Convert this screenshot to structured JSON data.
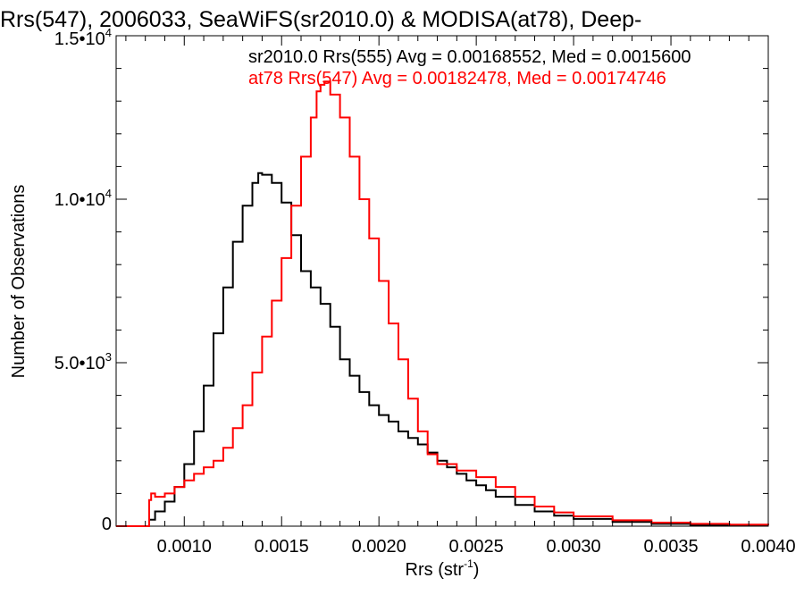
{
  "chart_data": {
    "type": "line",
    "title": "Rrs(547), 2006033, SeaWiFS(sr2010.0) & MODISA(at78), Deep-",
    "xlabel": "Rrs (str",
    "xlabel_sup": "-1",
    "xlabel_suffix": ")",
    "ylabel": "Number of Observations",
    "xlim": [
      0.00065,
      0.004
    ],
    "ylim": [
      0,
      15000
    ],
    "x_ticks": [
      {
        "value": 0.001,
        "label": "0.0010"
      },
      {
        "value": 0.0015,
        "label": "0.0015"
      },
      {
        "value": 0.002,
        "label": "0.0020"
      },
      {
        "value": 0.0025,
        "label": "0.0025"
      },
      {
        "value": 0.003,
        "label": "0.0030"
      },
      {
        "value": 0.0035,
        "label": "0.0035"
      },
      {
        "value": 0.004,
        "label": "0.0040"
      }
    ],
    "y_ticks": [
      {
        "value": 0,
        "label": "0",
        "sup": ""
      },
      {
        "value": 5000,
        "label": "5.0•10",
        "sup": "3"
      },
      {
        "value": 10000,
        "label": "1.0•10",
        "sup": "4"
      },
      {
        "value": 15000,
        "label": "1.5•10",
        "sup": "4"
      }
    ],
    "grid": false,
    "legend": [
      {
        "text": "sr2010.0 Rrs(555) Avg = 0.00168552, Med = 0.0015600",
        "color": "#000000"
      },
      {
        "text": "at78 Rrs(547) Avg = 0.00182478, Med = 0.00174746",
        "color": "#ff0000"
      }
    ],
    "series": [
      {
        "color": "#000000",
        "x": [
          0.00065,
          0.0008,
          0.00082,
          0.00085,
          0.0009,
          0.00095,
          0.001,
          0.00105,
          0.0011,
          0.00115,
          0.0012,
          0.00125,
          0.0013,
          0.00135,
          0.00138,
          0.0014,
          0.00145,
          0.0015,
          0.00155,
          0.0016,
          0.00165,
          0.0017,
          0.00175,
          0.0018,
          0.00185,
          0.0019,
          0.00195,
          0.002,
          0.00205,
          0.0021,
          0.00215,
          0.0022,
          0.00225,
          0.0023,
          0.00235,
          0.0024,
          0.00245,
          0.0025,
          0.00255,
          0.0026,
          0.0027,
          0.0028,
          0.0029,
          0.003,
          0.0032,
          0.0034,
          0.0036,
          0.0038,
          0.004
        ],
        "values": [
          0,
          0,
          200,
          450,
          750,
          1200,
          1900,
          2900,
          4300,
          5900,
          7300,
          8700,
          9800,
          10500,
          10800,
          10750,
          10500,
          9900,
          8900,
          7800,
          7300,
          6800,
          6100,
          5100,
          4600,
          4100,
          3700,
          3400,
          3200,
          2900,
          2700,
          2500,
          2250,
          2000,
          1800,
          1600,
          1400,
          1250,
          1100,
          900,
          650,
          450,
          320,
          220,
          130,
          70,
          40,
          30,
          30
        ]
      },
      {
        "color": "#ff0000",
        "x": [
          0.00065,
          0.0008,
          0.00082,
          0.00083,
          0.00085,
          0.0009,
          0.00095,
          0.001,
          0.00105,
          0.0011,
          0.00115,
          0.0012,
          0.00125,
          0.0013,
          0.00135,
          0.0014,
          0.00145,
          0.0015,
          0.00155,
          0.0016,
          0.00165,
          0.00168,
          0.0017,
          0.00172,
          0.00175,
          0.0018,
          0.00185,
          0.0019,
          0.00195,
          0.002,
          0.00205,
          0.0021,
          0.00215,
          0.0022,
          0.00225,
          0.0023,
          0.0024,
          0.0025,
          0.0026,
          0.0027,
          0.0028,
          0.0029,
          0.003,
          0.0032,
          0.0034,
          0.0036,
          0.0038,
          0.004
        ],
        "values": [
          0,
          0,
          800,
          1000,
          900,
          1000,
          1200,
          1400,
          1600,
          1800,
          2000,
          2400,
          3000,
          3700,
          4700,
          5800,
          6900,
          8200,
          9800,
          11300,
          12500,
          13300,
          13500,
          13600,
          13200,
          12500,
          11300,
          10000,
          8800,
          7500,
          6200,
          5100,
          3900,
          2900,
          2200,
          1900,
          1700,
          1500,
          1200,
          900,
          600,
          420,
          300,
          180,
          110,
          70,
          50,
          30
        ]
      }
    ]
  }
}
